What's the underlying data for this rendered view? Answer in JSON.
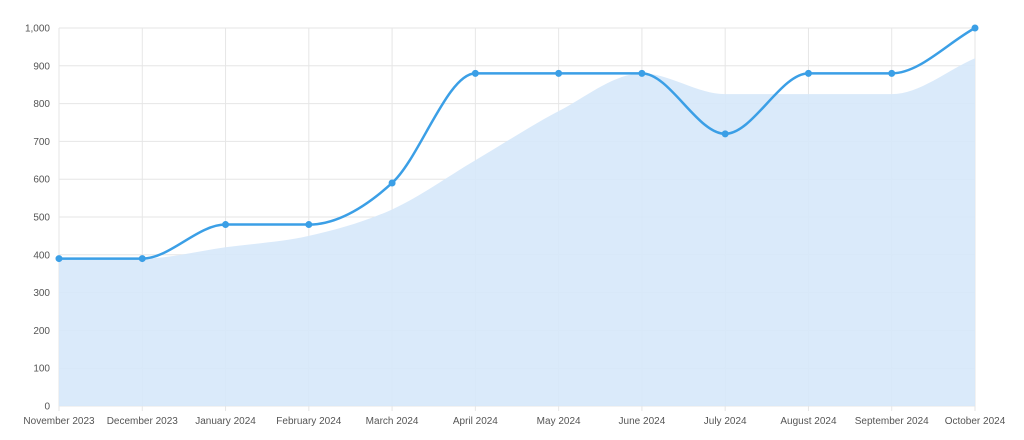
{
  "chart_data": {
    "type": "line",
    "x": [
      "November 2023",
      "December 2023",
      "January 2024",
      "February 2024",
      "March 2024",
      "April 2024",
      "May 2024",
      "June 2024",
      "July 2024",
      "August 2024",
      "September 2024",
      "October 2024"
    ],
    "series": [
      {
        "style": "line",
        "smooth": true,
        "markers": true,
        "color": "#3b9fe6",
        "values": [
          390,
          390,
          480,
          480,
          590,
          880,
          880,
          880,
          720,
          880,
          880,
          1000
        ]
      },
      {
        "style": "area",
        "smooth": true,
        "markers": false,
        "color": "#d6e8fa",
        "values": [
          390,
          390,
          420,
          450,
          520,
          650,
          780,
          880,
          825,
          825,
          825,
          920
        ]
      }
    ],
    "ylim": [
      0,
      1000
    ],
    "yticks": [
      "0",
      "100",
      "200",
      "300",
      "400",
      "500",
      "600",
      "700",
      "800",
      "900",
      "1,000"
    ],
    "xlabel": "",
    "ylabel": "",
    "title": "",
    "grid": true,
    "legend": "none"
  }
}
